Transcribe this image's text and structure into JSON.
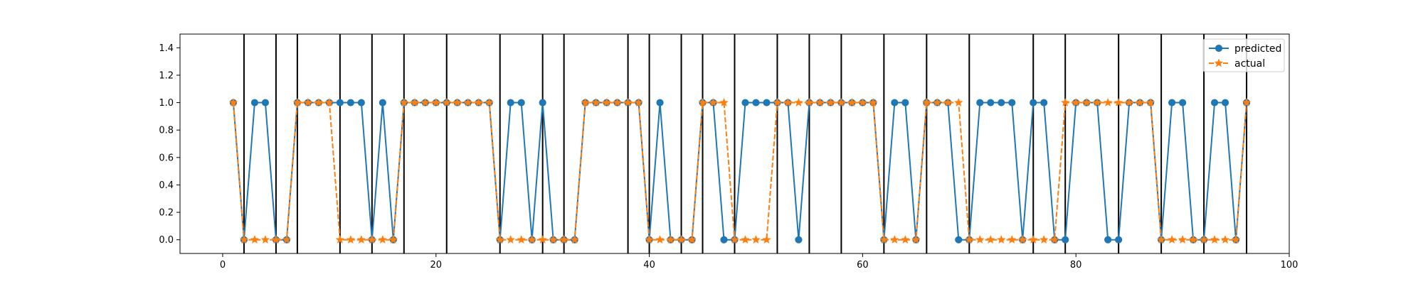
{
  "chart_data": {
    "type": "line",
    "title": "",
    "xlabel": "",
    "ylabel": "",
    "xlim": [
      -4,
      100
    ],
    "ylim": [
      -0.1,
      1.5
    ],
    "x_ticks": [
      0,
      20,
      40,
      60,
      80,
      100
    ],
    "y_ticks": [
      0.0,
      0.2,
      0.4,
      0.6,
      0.8,
      1.0,
      1.2,
      1.4
    ],
    "x_tick_labels": [
      "0",
      "20",
      "40",
      "60",
      "80",
      "100"
    ],
    "y_tick_labels": [
      "0.0",
      "0.2",
      "0.4",
      "0.6",
      "0.8",
      "1.0",
      "1.2",
      "1.4"
    ],
    "grid": false,
    "legend_position": "top-right",
    "vertical_lines": [
      2,
      5,
      7,
      11,
      14,
      17,
      21,
      26,
      30,
      32,
      38,
      40,
      43,
      45,
      48,
      52,
      55,
      58,
      62,
      66,
      70,
      76,
      79,
      84,
      88,
      92,
      96
    ],
    "x": [
      1,
      2,
      3,
      4,
      5,
      6,
      7,
      8,
      9,
      10,
      11,
      12,
      13,
      14,
      15,
      16,
      17,
      18,
      19,
      20,
      21,
      22,
      23,
      24,
      25,
      26,
      27,
      28,
      29,
      30,
      31,
      32,
      33,
      34,
      35,
      36,
      37,
      38,
      39,
      40,
      41,
      42,
      43,
      44,
      45,
      46,
      47,
      48,
      49,
      50,
      51,
      52,
      53,
      54,
      55,
      56,
      57,
      58,
      59,
      60,
      61,
      62,
      63,
      64,
      65,
      66,
      67,
      68,
      69,
      70,
      71,
      72,
      73,
      74,
      75,
      76,
      77,
      78,
      79,
      80,
      81,
      82,
      83,
      84,
      85,
      86,
      87,
      88,
      89,
      90,
      91,
      92,
      93,
      94,
      95,
      96
    ],
    "series": [
      {
        "name": "predicted",
        "color": "#1f77b4",
        "style": "solid",
        "marker": "circle",
        "values": [
          1,
          0,
          1,
          1,
          0,
          0,
          1,
          1,
          1,
          1,
          1,
          1,
          1,
          0,
          1,
          0,
          1,
          1,
          1,
          1,
          1,
          1,
          1,
          1,
          1,
          0,
          1,
          1,
          0,
          1,
          0,
          0,
          0,
          1,
          1,
          1,
          1,
          1,
          1,
          0,
          1,
          0,
          0,
          0,
          1,
          1,
          0,
          0,
          1,
          1,
          1,
          1,
          1,
          0,
          1,
          1,
          1,
          1,
          1,
          1,
          1,
          0,
          1,
          1,
          0,
          1,
          1,
          1,
          0,
          0,
          1,
          1,
          1,
          1,
          0,
          1,
          1,
          0,
          0,
          1,
          1,
          1,
          0,
          0,
          1,
          1,
          1,
          0,
          1,
          1,
          0,
          0,
          1,
          1,
          0,
          1
        ]
      },
      {
        "name": "actual",
        "color": "#ff7f0e",
        "style": "dashed",
        "marker": "star",
        "values": [
          1,
          0,
          0,
          0,
          0,
          0,
          1,
          1,
          1,
          1,
          0,
          0,
          0,
          0,
          0,
          0,
          1,
          1,
          1,
          1,
          1,
          1,
          1,
          1,
          1,
          0,
          0,
          0,
          0,
          0,
          0,
          0,
          0,
          1,
          1,
          1,
          1,
          1,
          1,
          0,
          0,
          0,
          0,
          0,
          1,
          1,
          1,
          0,
          0,
          0,
          0,
          1,
          1,
          1,
          1,
          1,
          1,
          1,
          1,
          1,
          1,
          0,
          0,
          0,
          0,
          1,
          1,
          1,
          1,
          0,
          0,
          0,
          0,
          0,
          0,
          0,
          0,
          0,
          1,
          1,
          1,
          1,
          1,
          1,
          1,
          1,
          1,
          0,
          0,
          0,
          0,
          0,
          0,
          0,
          0,
          1
        ]
      }
    ]
  }
}
